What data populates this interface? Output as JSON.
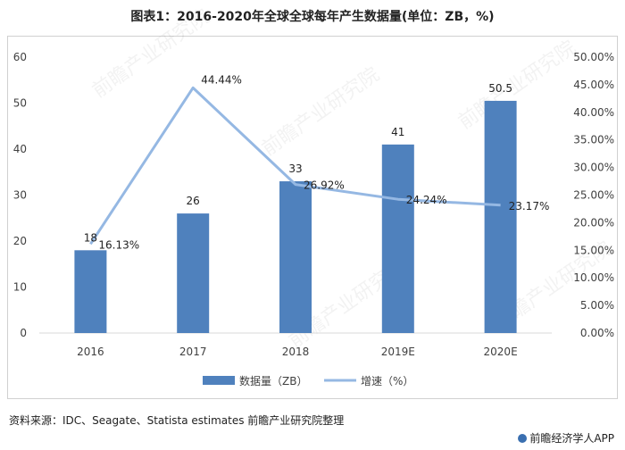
{
  "title": "图表1：2016-2020年全球全球每年产生数据量(单位：ZB，%)",
  "source": "资料来源：IDC、Seagate、Statista estimates 前瞻产业研究院整理",
  "brand": "前瞻经济学人APP",
  "watermark": "前瞻产业研究院",
  "colors": {
    "bar": "#4f81bd",
    "line": "#95b8e3",
    "grid": "#d9d9d9",
    "axis_text": "#404040"
  },
  "chart_data": {
    "type": "bar",
    "categories": [
      "2016",
      "2017",
      "2018",
      "2019E",
      "2020E"
    ],
    "series": [
      {
        "name": "数据量（ZB）",
        "type": "bar",
        "axis": "left",
        "values": [
          18,
          26,
          33,
          41,
          50.5
        ],
        "labels": [
          "18",
          "26",
          "33",
          "41",
          "50.5"
        ]
      },
      {
        "name": "增速（%）",
        "type": "line",
        "axis": "right",
        "values": [
          16.13,
          44.44,
          26.92,
          24.24,
          23.17
        ],
        "labels": [
          "16.13%",
          "44.44%",
          "26.92%",
          "24.24%",
          "23.17%"
        ]
      }
    ],
    "y_left": {
      "min": 0,
      "max": 60,
      "ticks": [
        "0",
        "10",
        "20",
        "30",
        "40",
        "50",
        "60"
      ]
    },
    "y_right": {
      "min": 0,
      "max": 50,
      "ticks": [
        "0.00%",
        "5.00%",
        "10.00%",
        "15.00%",
        "20.00%",
        "25.00%",
        "30.00%",
        "35.00%",
        "40.00%",
        "45.00%",
        "50.00%"
      ]
    },
    "grid": false,
    "legend_position": "bottom"
  }
}
